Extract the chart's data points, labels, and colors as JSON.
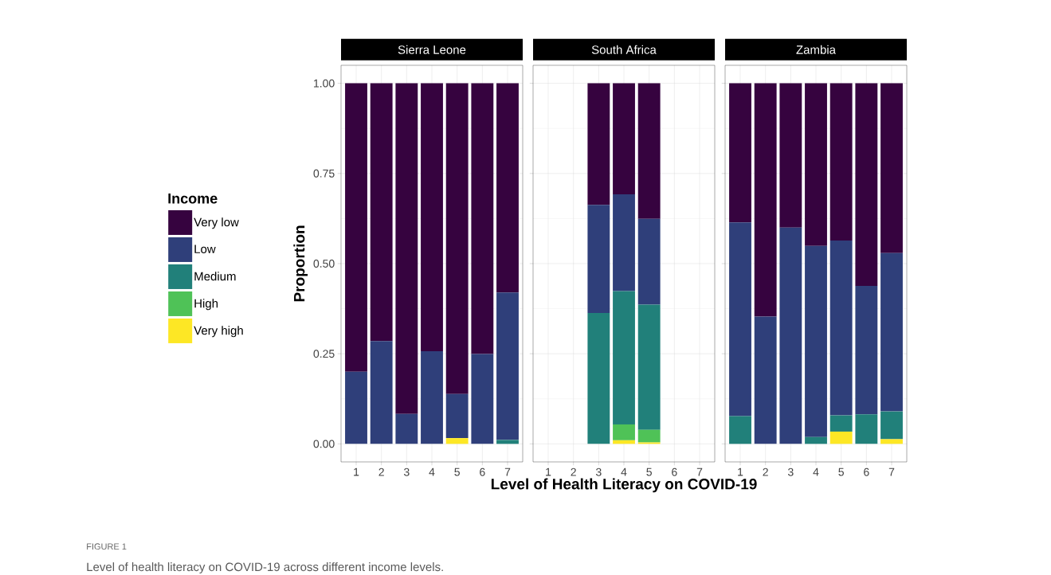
{
  "chart_data": [
    {
      "type": "bar",
      "stacked": true,
      "title": "Sierra Leone",
      "ylabel": "Proportion",
      "legend": "left",
      "legend_title": "Income",
      "grid": true,
      "categories": [
        "1",
        "2",
        "3",
        "4",
        "5",
        "6",
        "7"
      ],
      "ylim": [
        -0.05,
        1.05
      ],
      "yticks": [
        {
          "value": 0,
          "label": "0.00"
        },
        {
          "value": 0.25,
          "label": "0.25"
        },
        {
          "value": 0.5,
          "label": "0.50"
        },
        {
          "value": 0.75,
          "label": "0.75"
        },
        {
          "value": 1,
          "label": "1.00"
        }
      ],
      "annotations": [
        "FIGURE 1",
        "Level of health literacy on COVID-19 across different income levels."
      ],
      "series": [
        {
          "name": "Very high",
          "color": "#fde725",
          "values": [
            0,
            0,
            0,
            0,
            0.016,
            0,
            0
          ]
        },
        {
          "name": "High",
          "color": "#4fc257",
          "values": [
            0,
            0,
            0,
            0,
            0,
            0,
            0
          ]
        },
        {
          "name": "Medium",
          "color": "#21807a",
          "values": [
            0,
            0,
            0,
            0,
            0,
            0,
            0.011
          ]
        },
        {
          "name": "Low",
          "color": "#2f3f7a",
          "values": [
            0.2,
            0.285,
            0.083,
            0.257,
            0.122,
            0.249,
            0.409
          ]
        },
        {
          "name": "Very low",
          "color": "#36033f",
          "values": [
            0.8,
            0.715,
            0.917,
            0.743,
            0.862,
            0.751,
            0.58
          ]
        }
      ]
    },
    {
      "type": "bar",
      "stacked": true,
      "title": "South Africa",
      "xlabel": "Level of Health Literacy on COVID-19",
      "grid": true,
      "tick_labels": "x",
      "categories": [
        "1",
        "2",
        "3",
        "4",
        "5",
        "6",
        "7"
      ],
      "ylim": [
        -0.05,
        1.05
      ],
      "yticks": [
        {
          "value": 0,
          "label": null
        },
        {
          "value": 0.25,
          "label": null
        },
        {
          "value": 0.5,
          "label": null
        },
        {
          "value": 0.75,
          "label": null
        },
        {
          "value": 1,
          "label": null
        }
      ],
      "series": [
        {
          "color": "#fde725",
          "values": [
            null,
            null,
            0,
            0.01,
            0.004,
            null,
            null
          ]
        },
        {
          "color": "#4fc257",
          "values": [
            null,
            null,
            0,
            0.044,
            0.035,
            null,
            null
          ]
        },
        {
          "color": "#21807a",
          "values": [
            null,
            null,
            0.363,
            0.37,
            0.347,
            null,
            null
          ]
        },
        {
          "color": "#2f3f7a",
          "values": [
            null,
            null,
            0.3,
            0.268,
            0.238,
            null,
            null
          ]
        },
        {
          "color": "#36033f",
          "values": [
            null,
            null,
            0.337,
            0.308,
            0.376,
            null,
            null
          ]
        }
      ]
    },
    {
      "type": "bar",
      "stacked": true,
      "title": "Zambia",
      "grid": true,
      "tick_labels": "x",
      "categories": [
        "1",
        "2",
        "3",
        "4",
        "5",
        "6",
        "7"
      ],
      "ylim": [
        -0.05,
        1.05
      ],
      "yticks": [
        {
          "value": 0,
          "label": null
        },
        {
          "value": 0.25,
          "label": null
        },
        {
          "value": 0.5,
          "label": null
        },
        {
          "value": 0.75,
          "label": null
        },
        {
          "value": 1,
          "label": null
        }
      ],
      "series": [
        {
          "color": "#fde725",
          "values": [
            0,
            0,
            0,
            0,
            0.034,
            0,
            0.013
          ]
        },
        {
          "color": "#4fc257",
          "values": [
            0,
            0,
            0,
            0,
            0,
            0,
            0
          ]
        },
        {
          "color": "#21807a",
          "values": [
            0.077,
            0,
            0,
            0.019,
            0.045,
            0.082,
            0.077
          ]
        },
        {
          "color": "#2f3f7a",
          "values": [
            0.537,
            0.353,
            0.6,
            0.53,
            0.485,
            0.356,
            0.439
          ]
        },
        {
          "color": "#36033f",
          "values": [
            0.386,
            0.647,
            0.4,
            0.451,
            0.436,
            0.562,
            0.471
          ]
        }
      ]
    }
  ]
}
